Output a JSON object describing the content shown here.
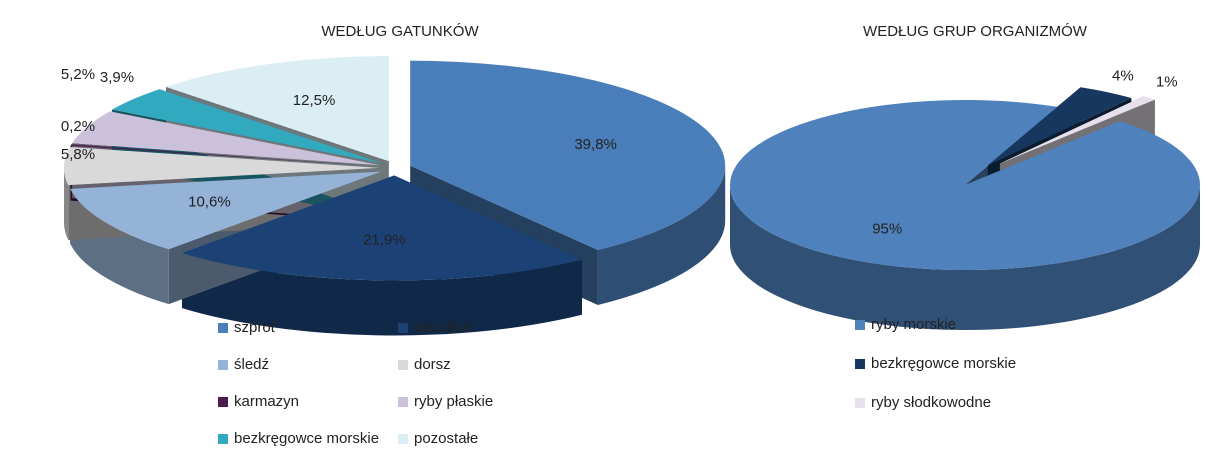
{
  "chart_data": [
    {
      "type": "pie",
      "title": "WEDŁUG GATUNKÓW",
      "categories": [
        "szprot",
        "ostrobok",
        "śledź",
        "dorsz",
        "karmazyn",
        "ryby płaskie",
        "bezkręgowce morskie",
        "pozostałe"
      ],
      "values": [
        39.8,
        21.9,
        10.6,
        5.8,
        0.2,
        5.2,
        3.9,
        12.5
      ],
      "value_labels": [
        "39,8%",
        "21,9%",
        "10,6%",
        "5,8%",
        "0,2%",
        "5,2%",
        "3,9%",
        "12,5%"
      ],
      "colors": [
        "#4a7ebb",
        "#1c4275",
        "#95b3d7",
        "#d9d9d9",
        "#4b1a4e",
        "#ccc1da",
        "#31a9bf",
        "#dbeef4"
      ]
    },
    {
      "type": "pie",
      "title": "WEDŁUG GRUP ORGANIZMÓW",
      "categories": [
        "ryby morskie",
        "bezkręgowce morskie",
        "ryby słodkowodne"
      ],
      "values": [
        95,
        4,
        1
      ],
      "value_labels": [
        "95%",
        "4%",
        "1%"
      ],
      "colors": [
        "#4f81bd",
        "#17375e",
        "#e6e0ec"
      ]
    }
  ]
}
